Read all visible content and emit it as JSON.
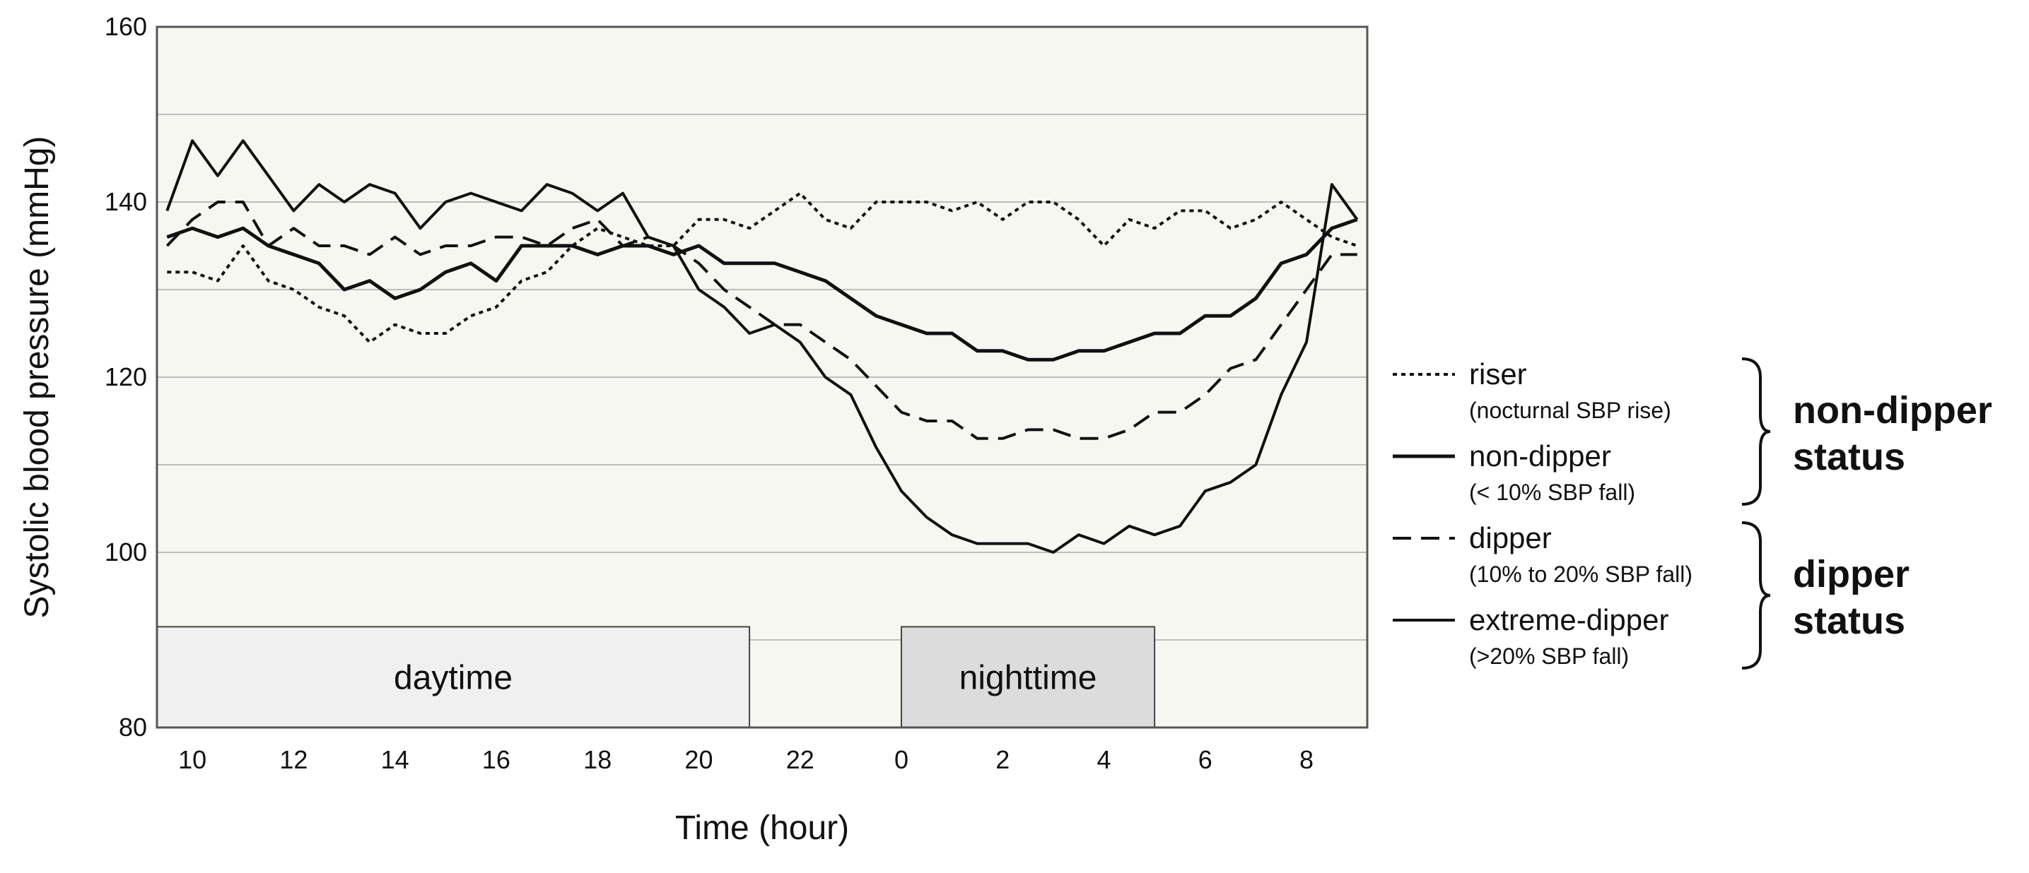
{
  "chart_data": {
    "type": "line",
    "xlabel": "Time (hour)",
    "ylabel": "Systolic blood pressure (mmHg)",
    "ylim": [
      80,
      160
    ],
    "yticks": [
      80,
      100,
      120,
      140,
      160
    ],
    "xticks": [
      {
        "t": 10,
        "label": "10"
      },
      {
        "t": 12,
        "label": "12"
      },
      {
        "t": 14,
        "label": "14"
      },
      {
        "t": 16,
        "label": "16"
      },
      {
        "t": 18,
        "label": "18"
      },
      {
        "t": 20,
        "label": "20"
      },
      {
        "t": 22,
        "label": "22"
      },
      {
        "t": 24,
        "label": "0"
      },
      {
        "t": 26,
        "label": "2"
      },
      {
        "t": 28,
        "label": "4"
      },
      {
        "t": 30,
        "label": "6"
      },
      {
        "t": 32,
        "label": "8"
      }
    ],
    "xlim": [
      9.3,
      33.2
    ],
    "grid": true,
    "periods": [
      {
        "label": "daytime",
        "start": 9.3,
        "end": 21.0,
        "fill": "#f0f0f0"
      },
      {
        "label": "nighttime",
        "start": 24.0,
        "end": 29.0,
        "fill": "#dcdcdc"
      }
    ],
    "series": [
      {
        "name": "riser",
        "style": "dotted",
        "x": [
          9.5,
          10,
          10.5,
          11,
          11.5,
          12,
          12.5,
          13,
          13.5,
          14,
          14.5,
          15,
          15.5,
          16,
          16.5,
          17,
          17.5,
          18,
          18.5,
          19,
          19.5,
          20,
          20.5,
          21,
          21.5,
          22,
          22.5,
          23,
          23.5,
          24,
          24.5,
          25,
          25.5,
          26,
          26.5,
          27,
          27.5,
          28,
          28.5,
          29,
          29.5,
          30,
          30.5,
          31,
          31.5,
          32,
          32.5,
          33
        ],
        "y": [
          132,
          132,
          131,
          135,
          131,
          130,
          128,
          127,
          124,
          126,
          125,
          125,
          127,
          128,
          131,
          132,
          135,
          137,
          136,
          135,
          135,
          138,
          138,
          137,
          139,
          141,
          138,
          137,
          140,
          140,
          140,
          139,
          140,
          138,
          140,
          140,
          138,
          135,
          138,
          137,
          139,
          139,
          137,
          138,
          140,
          138,
          136,
          135
        ]
      },
      {
        "name": "non-dipper",
        "sub": "(< 10% SBP fall)",
        "style": "solid-thick",
        "x": [
          9.5,
          10,
          10.5,
          11,
          11.5,
          12,
          12.5,
          13,
          13.5,
          14,
          14.5,
          15,
          15.5,
          16,
          16.5,
          17,
          17.5,
          18,
          18.5,
          19,
          19.5,
          20,
          20.5,
          21,
          21.5,
          22,
          22.5,
          23,
          23.5,
          24,
          24.5,
          25,
          25.5,
          26,
          26.5,
          27,
          27.5,
          28,
          28.5,
          29,
          29.5,
          30,
          30.5,
          31,
          31.5,
          32,
          32.5,
          33
        ],
        "y": [
          136,
          137,
          136,
          137,
          135,
          134,
          133,
          130,
          131,
          129,
          130,
          132,
          133,
          131,
          135,
          135,
          135,
          134,
          135,
          135,
          134,
          135,
          133,
          133,
          133,
          132,
          131,
          129,
          127,
          126,
          125,
          125,
          123,
          123,
          122,
          122,
          123,
          123,
          124,
          125,
          125,
          127,
          127,
          129,
          133,
          134,
          137,
          138
        ]
      },
      {
        "name": "dipper",
        "sub": "(10% to 20% SBP fall)",
        "style": "dashed",
        "x": [
          9.5,
          10,
          10.5,
          11,
          11.5,
          12,
          12.5,
          13,
          13.5,
          14,
          14.5,
          15,
          15.5,
          16,
          16.5,
          17,
          17.5,
          18,
          18.5,
          19,
          19.5,
          20,
          20.5,
          21,
          21.5,
          22,
          22.5,
          23,
          23.5,
          24,
          24.5,
          25,
          25.5,
          26,
          26.5,
          27,
          27.5,
          28,
          28.5,
          29,
          29.5,
          30,
          30.5,
          31,
          31.5,
          32,
          32.5,
          33
        ],
        "y": [
          135,
          138,
          140,
          140,
          135,
          137,
          135,
          135,
          134,
          136,
          134,
          135,
          135,
          136,
          136,
          135,
          137,
          138,
          135,
          136,
          135,
          133,
          130,
          128,
          126,
          126,
          124,
          122,
          119,
          116,
          115,
          115,
          113,
          113,
          114,
          114,
          113,
          113,
          114,
          116,
          116,
          118,
          121,
          122,
          126,
          130,
          134,
          134
        ]
      },
      {
        "name": "extreme-dipper",
        "sub": "(>20% SBP fall)",
        "style": "solid",
        "x": [
          9.5,
          10,
          10.5,
          11,
          11.5,
          12,
          12.5,
          13,
          13.5,
          14,
          14.5,
          15,
          15.5,
          16,
          16.5,
          17,
          17.5,
          18,
          18.5,
          19,
          19.5,
          20,
          20.5,
          21,
          21.5,
          22,
          22.5,
          23,
          23.5,
          24,
          24.5,
          25,
          25.5,
          26,
          26.5,
          27,
          27.5,
          28,
          28.5,
          29,
          29.5,
          30,
          30.5,
          31,
          31.5,
          32,
          32.5,
          33
        ],
        "y": [
          139,
          147,
          143,
          147,
          143,
          139,
          142,
          140,
          142,
          141,
          137,
          140,
          141,
          140,
          139,
          142,
          141,
          139,
          141,
          136,
          135,
          130,
          128,
          125,
          126,
          124,
          120,
          118,
          112,
          107,
          104,
          102,
          101,
          101,
          101,
          100,
          102,
          101,
          103,
          102,
          103,
          107,
          108,
          110,
          118,
          124,
          142,
          138
        ]
      }
    ],
    "legend": [
      {
        "series": "riser",
        "label": "riser",
        "sub": "(nocturnal SBP rise)"
      },
      {
        "series": "non-dipper",
        "label": "non-dipper",
        "sub": "(< 10% SBP fall)"
      },
      {
        "series": "dipper",
        "label": "dipper",
        "sub": "(10% to 20% SBP fall)"
      },
      {
        "series": "extreme-dipper",
        "label": "extreme-dipper",
        "sub": "(>20% SBP fall)"
      }
    ],
    "groups": [
      {
        "line1": "non-dipper",
        "line2": "status"
      },
      {
        "line1": "dipper",
        "line2": "status"
      }
    ]
  }
}
